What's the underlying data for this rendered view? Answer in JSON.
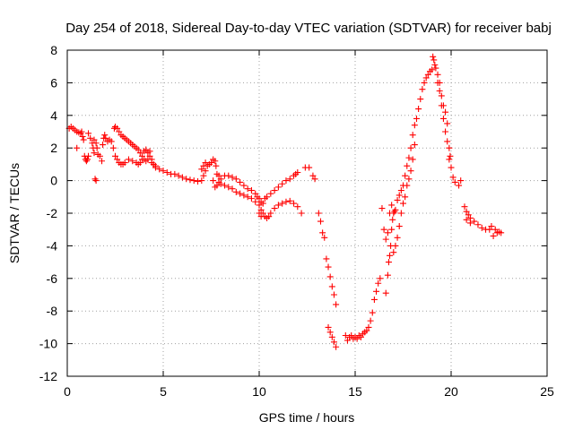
{
  "chart_data": {
    "type": "scatter",
    "title": "Day 254 of 2018, Sidereal Day-to-day VTEC variation (SDTVAR) for receiver babj",
    "xlabel": "GPS time / hours",
    "ylabel": "SDTVAR / TECUs",
    "xlim": [
      0,
      25
    ],
    "ylim": [
      -12,
      8
    ],
    "xticks": [
      "0",
      "5",
      "10",
      "15",
      "20",
      "25"
    ],
    "yticks": [
      "8",
      "6",
      "4",
      "2",
      "0",
      "-2",
      "-4",
      "-6",
      "-8",
      "-10",
      "-12"
    ],
    "grid": true,
    "marker": "plus",
    "series": [
      {
        "name": "babj",
        "color": "#ff0000",
        "points": [
          [
            0.1,
            3.2
          ],
          [
            0.2,
            3.3
          ],
          [
            0.3,
            3.2
          ],
          [
            0.4,
            3.1
          ],
          [
            0.5,
            3.0
          ],
          [
            0.6,
            2.95
          ],
          [
            0.7,
            2.9
          ],
          [
            0.75,
            3.0
          ],
          [
            0.8,
            2.7
          ],
          [
            0.85,
            2.5
          ],
          [
            0.9,
            1.5
          ],
          [
            0.95,
            1.3
          ],
          [
            1.0,
            1.2
          ],
          [
            1.05,
            1.3
          ],
          [
            1.1,
            1.5
          ],
          [
            0.5,
            2.0
          ],
          [
            1.1,
            2.9
          ],
          [
            1.2,
            2.6
          ],
          [
            1.3,
            2.3
          ],
          [
            1.35,
            2.0
          ],
          [
            1.4,
            1.7
          ],
          [
            1.45,
            0.1
          ],
          [
            1.5,
            0.0
          ],
          [
            1.4,
            2.5
          ],
          [
            1.5,
            2.3
          ],
          [
            1.55,
            2.0
          ],
          [
            1.6,
            1.6
          ],
          [
            1.7,
            1.5
          ],
          [
            1.8,
            1.2
          ],
          [
            1.85,
            2.2
          ],
          [
            1.9,
            2.6
          ],
          [
            1.95,
            2.8
          ],
          [
            2.0,
            2.6
          ],
          [
            2.1,
            2.4
          ],
          [
            2.2,
            2.5
          ],
          [
            2.3,
            2.4
          ],
          [
            2.4,
            2.0
          ],
          [
            2.45,
            3.2
          ],
          [
            2.5,
            3.3
          ],
          [
            2.6,
            3.2
          ],
          [
            2.7,
            3.0
          ],
          [
            2.8,
            2.8
          ],
          [
            2.9,
            2.7
          ],
          [
            3.0,
            2.6
          ],
          [
            3.1,
            2.5
          ],
          [
            3.2,
            2.4
          ],
          [
            3.3,
            2.3
          ],
          [
            3.4,
            2.2
          ],
          [
            3.5,
            2.1
          ],
          [
            3.6,
            2.0
          ],
          [
            3.7,
            1.9
          ],
          [
            3.8,
            1.7
          ],
          [
            3.9,
            1.5
          ],
          [
            4.0,
            1.3
          ],
          [
            4.1,
            1.2
          ],
          [
            4.2,
            1.3
          ],
          [
            4.3,
            1.5
          ],
          [
            4.4,
            1.3
          ],
          [
            4.5,
            1.0
          ],
          [
            4.6,
            0.8
          ],
          [
            2.5,
            1.5
          ],
          [
            2.6,
            1.3
          ],
          [
            2.7,
            1.1
          ],
          [
            2.8,
            1.0
          ],
          [
            2.9,
            1.0
          ],
          [
            3.0,
            1.1
          ],
          [
            3.2,
            1.3
          ],
          [
            3.4,
            1.2
          ],
          [
            3.6,
            1.1
          ],
          [
            3.7,
            1.0
          ],
          [
            3.8,
            1.1
          ],
          [
            3.9,
            1.3
          ],
          [
            4.0,
            1.8
          ],
          [
            4.1,
            1.9
          ],
          [
            4.2,
            1.7
          ],
          [
            4.3,
            1.8
          ],
          [
            4.4,
            1.1
          ],
          [
            4.6,
            0.9
          ],
          [
            4.8,
            0.7
          ],
          [
            5.0,
            0.6
          ],
          [
            5.2,
            0.5
          ],
          [
            5.4,
            0.4
          ],
          [
            5.6,
            0.4
          ],
          [
            5.8,
            0.3
          ],
          [
            6.0,
            0.2
          ],
          [
            6.2,
            0.1
          ],
          [
            6.4,
            0.05
          ],
          [
            6.6,
            0.0
          ],
          [
            6.8,
            -0.05
          ],
          [
            7.0,
            0.0
          ],
          [
            7.1,
            0.3
          ],
          [
            7.2,
            0.6
          ],
          [
            7.3,
            0.9
          ],
          [
            7.4,
            1.0
          ],
          [
            7.5,
            1.1
          ],
          [
            7.6,
            1.3
          ],
          [
            7.7,
            1.2
          ],
          [
            7.75,
            0.9
          ],
          [
            7.8,
            0.4
          ],
          [
            7.9,
            0.3
          ],
          [
            7.0,
            0.7
          ],
          [
            7.1,
            0.9
          ],
          [
            7.2,
            1.1
          ],
          [
            7.6,
            0.0
          ],
          [
            7.7,
            -0.4
          ],
          [
            7.8,
            -0.3
          ],
          [
            7.9,
            -0.1
          ],
          [
            8.0,
            0.1
          ],
          [
            8.2,
            0.3
          ],
          [
            8.4,
            0.3
          ],
          [
            8.6,
            0.2
          ],
          [
            8.8,
            0.1
          ],
          [
            9.0,
            -0.1
          ],
          [
            9.2,
            -0.3
          ],
          [
            9.4,
            -0.5
          ],
          [
            9.6,
            -0.6
          ],
          [
            9.8,
            -0.8
          ],
          [
            9.9,
            -1.0
          ],
          [
            10.0,
            -1.1
          ],
          [
            10.1,
            -1.3
          ],
          [
            8.0,
            -0.2
          ],
          [
            8.2,
            -0.3
          ],
          [
            8.4,
            -0.4
          ],
          [
            8.6,
            -0.5
          ],
          [
            8.8,
            -0.7
          ],
          [
            9.0,
            -0.8
          ],
          [
            9.2,
            -0.9
          ],
          [
            9.4,
            -1.0
          ],
          [
            9.6,
            -1.1
          ],
          [
            9.8,
            -1.3
          ],
          [
            10.0,
            -1.5
          ],
          [
            10.1,
            -1.8
          ],
          [
            10.2,
            -2.0
          ],
          [
            10.3,
            -2.2
          ],
          [
            10.4,
            -2.3
          ],
          [
            10.5,
            -2.2
          ],
          [
            10.6,
            -2.0
          ],
          [
            10.8,
            -1.7
          ],
          [
            11.0,
            -1.5
          ],
          [
            11.2,
            -1.4
          ],
          [
            11.4,
            -1.3
          ],
          [
            11.6,
            -1.25
          ],
          [
            11.8,
            -1.4
          ],
          [
            12.0,
            -1.6
          ],
          [
            12.2,
            -2.0
          ],
          [
            10.0,
            -2.0
          ],
          [
            10.1,
            -2.2
          ],
          [
            10.2,
            -1.4
          ],
          [
            10.3,
            -1.1
          ],
          [
            10.4,
            -1.0
          ],
          [
            10.6,
            -0.8
          ],
          [
            10.8,
            -0.6
          ],
          [
            11.0,
            -0.4
          ],
          [
            11.2,
            -0.2
          ],
          [
            11.4,
            0.0
          ],
          [
            11.6,
            0.1
          ],
          [
            11.8,
            0.3
          ],
          [
            11.9,
            0.4
          ],
          [
            12.0,
            0.5
          ],
          [
            12.4,
            0.8
          ],
          [
            12.6,
            0.8
          ],
          [
            12.8,
            0.3
          ],
          [
            12.9,
            0.1
          ],
          [
            13.1,
            -2.0
          ],
          [
            13.2,
            -2.5
          ],
          [
            13.3,
            -3.2
          ],
          [
            13.4,
            -3.5
          ],
          [
            13.5,
            -4.8
          ],
          [
            13.6,
            -5.3
          ],
          [
            13.7,
            -5.9
          ],
          [
            13.8,
            -6.5
          ],
          [
            13.9,
            -7.0
          ],
          [
            14.0,
            -7.6
          ],
          [
            13.6,
            -9.0
          ],
          [
            13.7,
            -9.3
          ],
          [
            13.8,
            -9.6
          ],
          [
            13.9,
            -9.9
          ],
          [
            14.0,
            -10.2
          ],
          [
            14.5,
            -9.5
          ],
          [
            14.6,
            -9.8
          ],
          [
            14.7,
            -9.6
          ],
          [
            14.8,
            -9.5
          ],
          [
            14.9,
            -9.7
          ],
          [
            15.0,
            -9.6
          ],
          [
            15.1,
            -9.7
          ],
          [
            15.2,
            -9.5
          ],
          [
            15.3,
            -9.6
          ],
          [
            15.4,
            -9.4
          ],
          [
            15.5,
            -9.3
          ],
          [
            15.6,
            -9.2
          ],
          [
            15.7,
            -9.0
          ],
          [
            15.8,
            -8.6
          ],
          [
            15.9,
            -8.1
          ],
          [
            16.0,
            -7.3
          ],
          [
            16.1,
            -6.8
          ],
          [
            16.2,
            -6.3
          ],
          [
            16.3,
            -6.0
          ],
          [
            16.4,
            -1.7
          ],
          [
            16.5,
            -3.0
          ],
          [
            16.6,
            -3.6
          ],
          [
            16.6,
            -6.9
          ],
          [
            16.7,
            -5.8
          ],
          [
            16.75,
            -5.0
          ],
          [
            16.8,
            -4.6
          ],
          [
            16.85,
            -4.0
          ],
          [
            16.9,
            -3.0
          ],
          [
            16.95,
            -2.4
          ],
          [
            17.0,
            -2.0
          ],
          [
            17.05,
            -1.9
          ],
          [
            17.1,
            -1.8
          ],
          [
            16.7,
            -3.2
          ],
          [
            16.8,
            -2.0
          ],
          [
            16.9,
            -1.5
          ],
          [
            17.0,
            -4.4
          ],
          [
            17.1,
            -4.0
          ],
          [
            17.2,
            -3.5
          ],
          [
            17.3,
            -2.8
          ],
          [
            17.4,
            -2.0
          ],
          [
            17.5,
            -1.4
          ],
          [
            17.6,
            -1.0
          ],
          [
            17.2,
            -1.2
          ],
          [
            17.3,
            -0.9
          ],
          [
            17.4,
            -0.6
          ],
          [
            17.5,
            -0.3
          ],
          [
            17.6,
            0.3
          ],
          [
            17.7,
            0.9
          ],
          [
            17.8,
            1.4
          ],
          [
            17.9,
            2.0
          ],
          [
            18.0,
            2.8
          ],
          [
            18.1,
            3.4
          ],
          [
            17.7,
            -0.3
          ],
          [
            17.8,
            0.1
          ],
          [
            17.9,
            0.6
          ],
          [
            18.0,
            1.3
          ],
          [
            18.1,
            2.2
          ],
          [
            18.2,
            3.8
          ],
          [
            18.3,
            4.4
          ],
          [
            18.4,
            5.0
          ],
          [
            18.5,
            5.6
          ],
          [
            18.6,
            6.0
          ],
          [
            18.7,
            6.3
          ],
          [
            18.8,
            6.5
          ],
          [
            18.9,
            6.7
          ],
          [
            19.0,
            6.8
          ],
          [
            19.05,
            7.6
          ],
          [
            19.1,
            7.4
          ],
          [
            19.15,
            7.1
          ],
          [
            19.2,
            6.9
          ],
          [
            19.3,
            6.5
          ],
          [
            19.4,
            6.0
          ],
          [
            19.5,
            5.2
          ],
          [
            19.6,
            4.6
          ],
          [
            19.7,
            4.2
          ],
          [
            19.8,
            3.5
          ],
          [
            19.9,
            2.0
          ],
          [
            19.95,
            1.5
          ],
          [
            20.0,
            0.8
          ],
          [
            19.3,
            6.0
          ],
          [
            19.4,
            5.5
          ],
          [
            19.5,
            4.6
          ],
          [
            19.6,
            3.8
          ],
          [
            19.7,
            3.0
          ],
          [
            19.8,
            2.4
          ],
          [
            19.9,
            1.3
          ],
          [
            20.1,
            0.2
          ],
          [
            20.2,
            -0.1
          ],
          [
            20.4,
            -0.3
          ],
          [
            20.5,
            0.0
          ],
          [
            20.7,
            -1.6
          ],
          [
            20.8,
            -1.9
          ],
          [
            20.9,
            -2.1
          ],
          [
            21.0,
            -2.3
          ],
          [
            21.2,
            -2.5
          ],
          [
            21.4,
            -2.7
          ],
          [
            21.6,
            -2.9
          ],
          [
            21.8,
            -3.0
          ],
          [
            22.0,
            -3.0
          ],
          [
            22.1,
            -2.8
          ],
          [
            22.3,
            -3.0
          ],
          [
            22.4,
            -3.2
          ],
          [
            22.5,
            -3.15
          ],
          [
            22.6,
            -3.2
          ],
          [
            22.2,
            -3.4
          ],
          [
            20.8,
            -2.4
          ],
          [
            21.0,
            -2.6
          ]
        ]
      }
    ]
  }
}
